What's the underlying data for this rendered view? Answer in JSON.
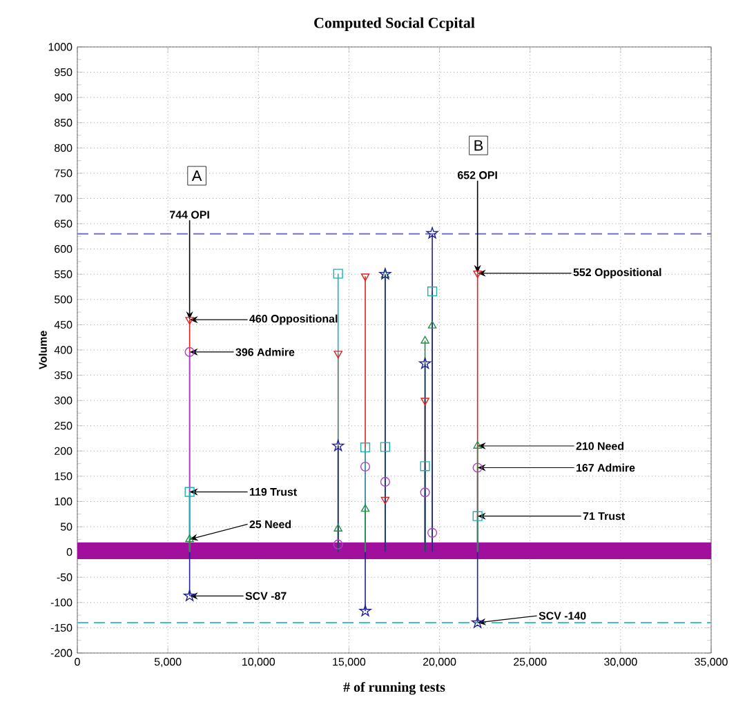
{
  "chart_data": {
    "type": "lollipop",
    "title": "Computed Social Ccpital",
    "xlabel": "# of running tests",
    "ylabel": "Volume",
    "xlim": [
      0,
      35000
    ],
    "ylim": [
      -200,
      1000
    ],
    "xticks": [
      0,
      {
        "value": 5000,
        "label": "5,000"
      },
      {
        "value": 10000,
        "label": "10,000"
      },
      {
        "value": 15000,
        "label": "15,000"
      },
      {
        "value": 20000,
        "label": "20,000"
      },
      {
        "value": 25000,
        "label": "25,000"
      },
      {
        "value": 30000,
        "label": "30,000"
      },
      {
        "value": 35000,
        "label": "35,000"
      }
    ],
    "yticks": [
      -200,
      -150,
      -100,
      -50,
      0,
      50,
      100,
      150,
      200,
      250,
      300,
      350,
      400,
      450,
      500,
      550,
      600,
      650,
      700,
      750,
      800,
      850,
      900,
      950,
      1000
    ],
    "grid": true,
    "series": [
      {
        "color": "#e02020",
        "marker": "triangle-down",
        "x": [
          6200,
          14400,
          15900,
          17000,
          19200,
          22100
        ],
        "values": [
          460,
          393,
          546,
          104,
          300,
          552
        ]
      },
      {
        "color": "#b040c0",
        "marker": "circle",
        "x": [
          6200,
          14400,
          15900,
          17000,
          19200,
          19600,
          22100
        ],
        "values": [
          396,
          15,
          169,
          139,
          118,
          38,
          167
        ]
      },
      {
        "color": "#20b0b0",
        "marker": "square",
        "x": [
          6200,
          14400,
          15900,
          17000,
          19200,
          19600,
          22100
        ],
        "values": [
          119,
          551,
          207,
          208,
          170,
          516,
          71
        ]
      },
      {
        "color": "#209040",
        "marker": "triangle",
        "x": [
          6200,
          14400,
          15900,
          17000,
          19200,
          19600,
          22100
        ],
        "values": [
          25,
          46,
          85,
          548,
          418,
          448,
          210
        ]
      },
      {
        "color": "#202090",
        "marker": "star",
        "x": [
          6200,
          14400,
          15900,
          17000,
          19200,
          19600,
          22100
        ],
        "values": [
          -87,
          210,
          -117,
          550,
          373,
          631,
          -140
        ]
      }
    ],
    "ref_lines": [
      {
        "axis": "y",
        "value": 630,
        "color": "#7070c8",
        "line_style": "dashed"
      },
      {
        "axis": "y",
        "value": -140,
        "color": "#40c0c0",
        "line_style": "dashed"
      }
    ],
    "bands": [
      {
        "axis": "y",
        "from": -14,
        "to": 19,
        "color": "#a0109c"
      }
    ],
    "annotations": [
      {
        "text": "744 OPI",
        "x": 6200,
        "y": 460
      },
      {
        "text": "460 Oppositional",
        "x": 6200,
        "y": 460
      },
      {
        "text": "396 Admire",
        "x": 6200,
        "y": 396
      },
      {
        "text": "119 Trust",
        "x": 6200,
        "y": 119
      },
      {
        "text": "25 Need",
        "x": 6200,
        "y": 25
      },
      {
        "text": "SCV -87",
        "x": 6200,
        "y": -87
      },
      {
        "text": "652 OPI",
        "x": 22100,
        "y": 552
      },
      {
        "text": "552 Oppositional",
        "x": 22100,
        "y": 552
      },
      {
        "text": "210 Need",
        "x": 22100,
        "y": 210
      },
      {
        "text": "167 Admire",
        "x": 22100,
        "y": 167
      },
      {
        "text": "71 Trust",
        "x": 22100,
        "y": 71
      },
      {
        "text": "SCV -140",
        "x": 22100,
        "y": -140
      },
      {
        "text": "A",
        "x": 6600,
        "y": 745
      },
      {
        "text": "B",
        "x": 22150,
        "y": 805
      }
    ]
  }
}
